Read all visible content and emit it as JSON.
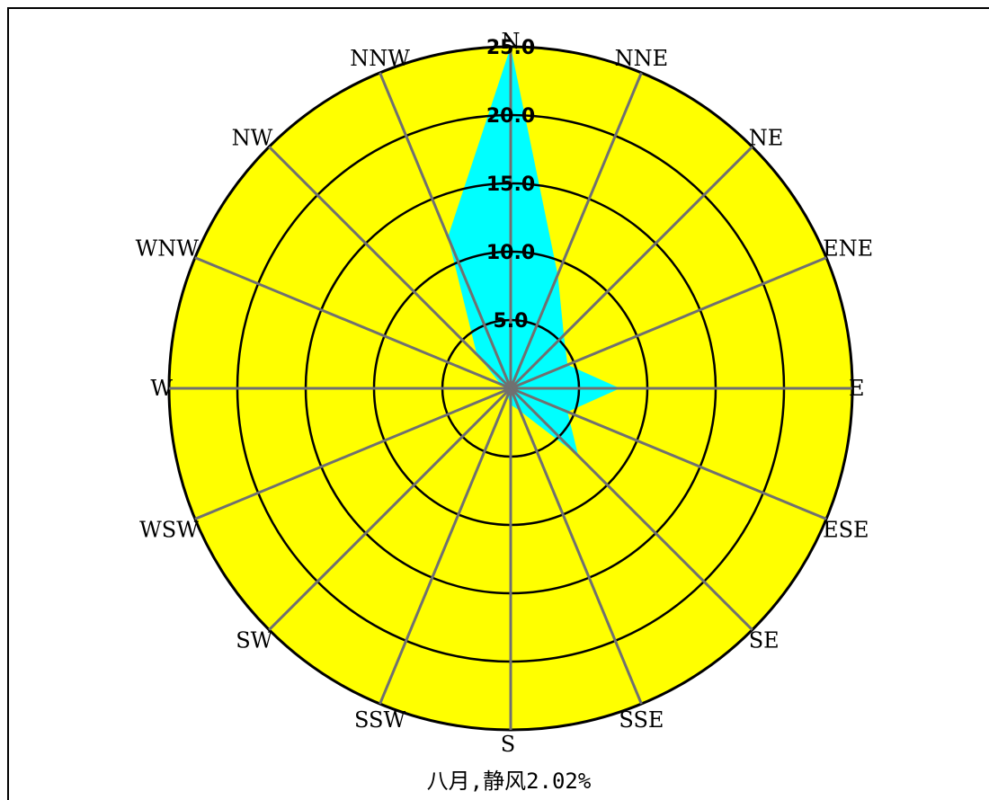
{
  "chart_data": {
    "type": "radar",
    "directions": [
      "N",
      "NNE",
      "NE",
      "ENE",
      "E",
      "ESE",
      "SE",
      "SSE",
      "S",
      "SSW",
      "SW",
      "WSW",
      "W",
      "WNW",
      "NW",
      "NNW"
    ],
    "values": [
      25.0,
      9.0,
      5.5,
      4.5,
      8.0,
      4.5,
      7.0,
      1.8,
      1.2,
      0.6,
      0.2,
      0.2,
      0.3,
      0.8,
      3.5,
      12.0
    ],
    "ring_values": [
      5.0,
      10.0,
      15.0,
      20.0,
      25.0
    ],
    "ring_labels": [
      "5.0",
      "10.0",
      "15.0",
      "20.0",
      "25.0"
    ],
    "r_max": 25.0,
    "colors": {
      "background": "#ffff00",
      "fill": "#00ffff",
      "rings": "#000000",
      "spokes": "#707070"
    }
  },
  "caption": "八月,静风2.02%"
}
